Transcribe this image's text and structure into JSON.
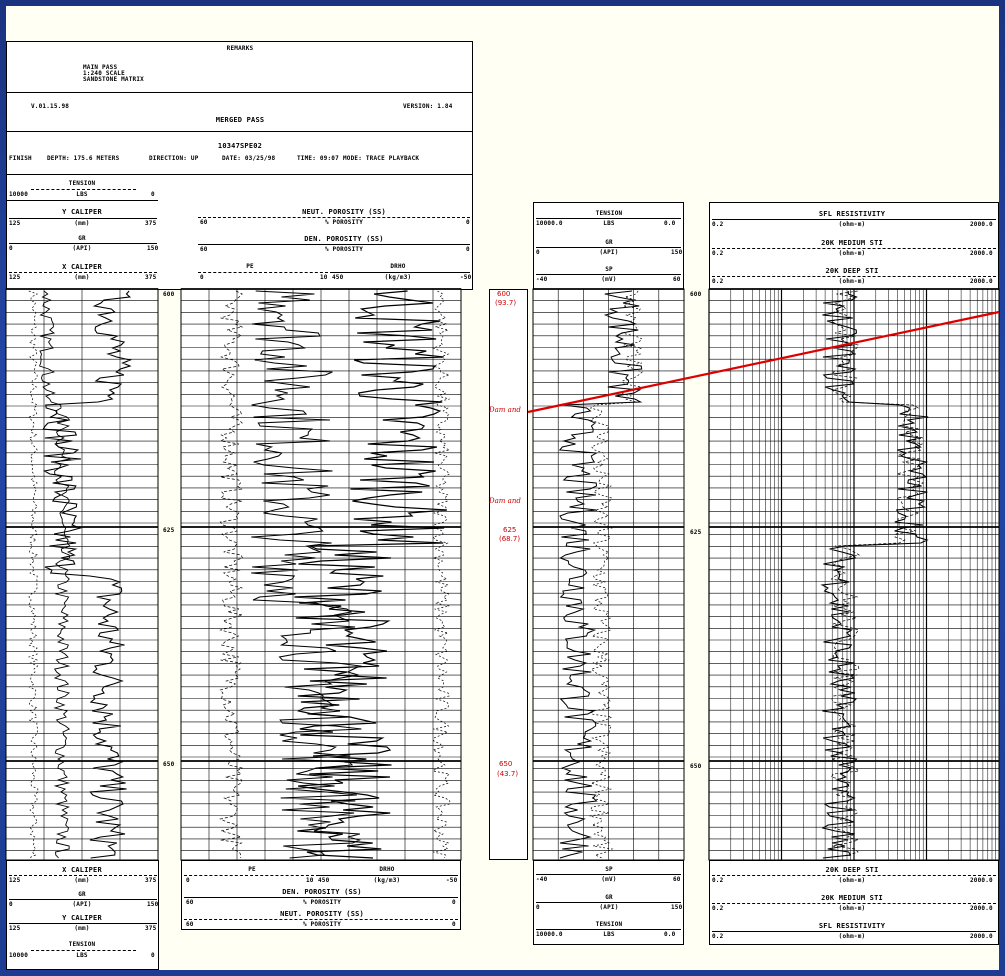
{
  "header": {
    "remarks_title": "REMARKS",
    "remarks_lines": [
      "MAIN PASS",
      "1:240 SCALE",
      "SANDSTONE MATRIX"
    ],
    "version_left": "V.01.15.98",
    "version_right": "VERSION: 1.84",
    "pass_title": "MERGED PASS",
    "file_id": "10347SPE02",
    "finish": "FINISH",
    "depth": "DEPTH: 175.6 METERS",
    "direction": "DIRECTION: UP",
    "date": "DATE: 03/25/98",
    "time": "TIME: 09:07",
    "mode": "MODE: TRACE PLAYBACK"
  },
  "left_top_scales": {
    "tension": {
      "label": "TENSION",
      "unit": "LBS",
      "min": "10000",
      "max": "0"
    },
    "y_caliper": {
      "label": "Y CALIPER",
      "unit": "(mm)",
      "min": "125",
      "max": "375"
    },
    "gr": {
      "label": "GR",
      "unit": "(API)",
      "min": "0",
      "max": "150"
    },
    "x_caliper": {
      "label": "X CALIPER",
      "unit": "(mm)",
      "min": "125",
      "max": "375"
    }
  },
  "mid_top_scales": {
    "neut": {
      "label": "NEUT. POROSITY (SS)",
      "unit": "% POROSITY",
      "min": "60",
      "max": "0"
    },
    "den": {
      "label": "DEN. POROSITY (SS)",
      "unit": "% POROSITY",
      "min": "60",
      "max": "0"
    },
    "pe": {
      "label": "PE",
      "min": "0",
      "max": "10"
    },
    "drho": {
      "label": "DRHO",
      "unit": "(kg/m3)",
      "min": "450",
      "max": "-50"
    }
  },
  "right_top_scales": {
    "tension": {
      "label": "TENSION",
      "unit": "LBS",
      "min": "10000.0",
      "max": "0.0"
    },
    "gr": {
      "label": "GR",
      "unit": "(API)",
      "min": "0",
      "max": "150"
    },
    "sp": {
      "label": "SP",
      "unit": "(mV)",
      "min": "-40",
      "max": "60"
    }
  },
  "res_top_scales": {
    "sfl": {
      "label": "SFL RESISTIVITY",
      "unit": "(ohm-m)",
      "min": "0.2",
      "max": "2000.0"
    },
    "medium": {
      "label": "20K MEDIUM STI",
      "unit": "(ohm-m)",
      "min": "0.2",
      "max": "2000.0"
    },
    "deep": {
      "label": "20K DEEP STI",
      "unit": "(ohm-m)",
      "min": "0.2",
      "max": "2000.0"
    }
  },
  "bottom_left_scales": {
    "x_caliper": {
      "label": "X CALIPER",
      "unit": "(mm)",
      "min": "125",
      "max": "375"
    },
    "gr": {
      "label": "GR",
      "unit": "(API)",
      "min": "0",
      "max": "150"
    },
    "y_caliper": {
      "label": "Y CALIPER",
      "unit": "(mm)",
      "min": "125",
      "max": "375"
    },
    "tension": {
      "label": "TENSION",
      "unit": "LBS",
      "min": "10000",
      "max": "0"
    }
  },
  "bottom_mid_scales": {
    "pe": {
      "label": "PE",
      "min": "0",
      "max": "10"
    },
    "drho": {
      "label": "DRHO",
      "unit": "(kg/m3)",
      "min": "450",
      "max": "-50"
    },
    "den": {
      "label": "DEN. POROSITY (SS)",
      "unit": "% POROSITY",
      "min": "60",
      "max": "0"
    },
    "neut": {
      "label": "NEUT. POROSITY (SS)",
      "unit": "% POROSITY",
      "min": "60",
      "max": "0"
    }
  },
  "bottom_right_scales": {
    "sp": {
      "label": "SP",
      "unit": "(mV)",
      "min": "-40",
      "max": "60"
    },
    "gr": {
      "label": "GR",
      "unit": "(API)",
      "min": "0",
      "max": "150"
    },
    "tension": {
      "label": "TENSION",
      "unit": "LBS",
      "min": "10000.0",
      "max": "0.0"
    }
  },
  "bottom_res_scales": {
    "deep": {
      "label": "20K DEEP STI",
      "unit": "(ohm-m)",
      "min": "0.2",
      "max": "2000.0"
    },
    "medium": {
      "label": "20K MEDIUM STI",
      "unit": "(ohm-m)",
      "min": "0.2",
      "max": "2000.0"
    },
    "sfl": {
      "label": "SFL RESISTIVITY",
      "unit": "(ohm-m)",
      "min": "0.2",
      "max": "2000.0"
    }
  },
  "depths": {
    "d600": "600",
    "d625": "625",
    "d650": "650"
  },
  "core": {
    "top_depth": "600",
    "top_elev": "(93.7)",
    "upper_label": "Dam and",
    "lower_label": "Dam and",
    "mid_depth": "625",
    "mid_elev": "(68.7)",
    "bottom_depth": "650",
    "bottom_elev": "(43.7)"
  },
  "colors": {
    "frame": "#1c3a8e",
    "accent": "#dd0000"
  }
}
